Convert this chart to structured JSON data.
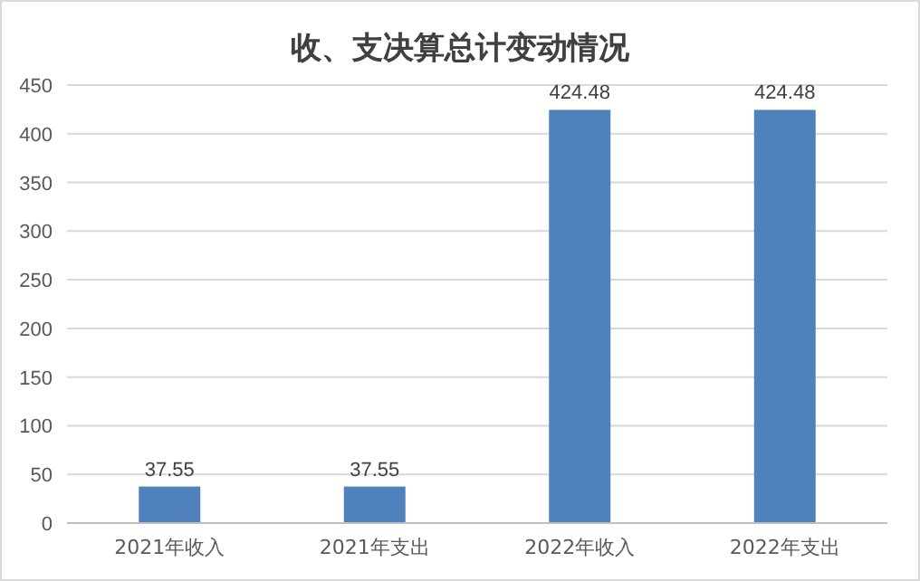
{
  "chart_data": {
    "type": "bar",
    "title": "收、支决算总计变动情况",
    "categories": [
      "2021年收入",
      "2021年支出",
      "2022年收入",
      "2022年支出"
    ],
    "values": [
      37.55,
      37.55,
      424.48,
      424.48
    ],
    "color": "#4f81bd",
    "ylim": [
      0,
      450
    ],
    "yticks": [
      0,
      50,
      100,
      150,
      200,
      250,
      300,
      350,
      400,
      450
    ],
    "grid": "y",
    "data_labels": true
  }
}
